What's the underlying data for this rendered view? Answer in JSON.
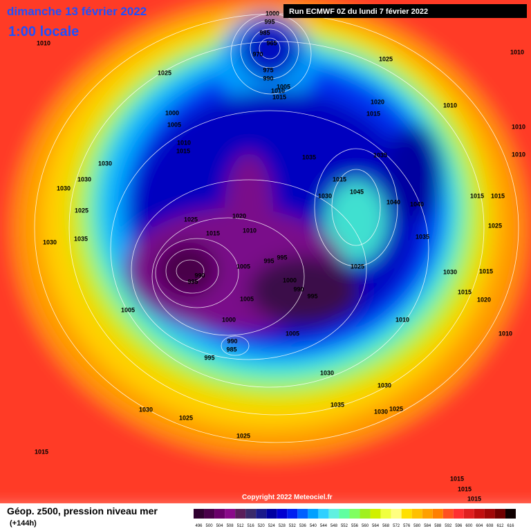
{
  "header": {
    "date": "dimanche 13 février 2022",
    "time": "1:00 locale",
    "run": "Run ECMWF 0Z du lundi 7 février 2022"
  },
  "footer": {
    "title": "Géop. z500, pression niveau mer",
    "lead": "(+144h)",
    "copyright": "Copyright 2022 Meteociel.fr"
  },
  "legend": {
    "ticks": [
      496,
      500,
      504,
      508,
      512,
      516,
      520,
      524,
      528,
      532,
      536,
      540,
      544,
      548,
      552,
      556,
      560,
      564,
      568,
      572,
      576,
      580,
      584,
      588,
      592,
      596,
      600,
      604,
      608,
      612,
      616
    ],
    "colors": [
      "#300030",
      "#4a004a",
      "#6a006a",
      "#8a0a8a",
      "#5a1e5a",
      "#3a2a6a",
      "#1a1a8a",
      "#0000a0",
      "#0000d0",
      "#0020f0",
      "#0060ff",
      "#00a0ff",
      "#30d0ff",
      "#60f0e0",
      "#60ffa0",
      "#80ff60",
      "#a0f020",
      "#d0f000",
      "#f0ff40",
      "#ffff80",
      "#ffe000",
      "#ffc000",
      "#ffa000",
      "#ff8000",
      "#ff5020",
      "#ff3030",
      "#e02020",
      "#c01010",
      "#a00808",
      "#700000",
      "#100000"
    ]
  },
  "isobar_labels": [
    "1000",
    "995",
    "985",
    "965",
    "970",
    "975",
    "990",
    "1005",
    "1010",
    "1015",
    "1010",
    "1025",
    "1025",
    "1010",
    "1020",
    "1015",
    "1010",
    "1010",
    "1000",
    "1005",
    "1010",
    "1015",
    "1030",
    "1030",
    "1035",
    "1035",
    "1010",
    "1030",
    "1015",
    "1045",
    "1030",
    "1015",
    "1015",
    "1040",
    "1040",
    "1025",
    "1025",
    "1020",
    "1010",
    "1015",
    "1025",
    "1035",
    "1035",
    "1030",
    "995",
    "995",
    "1005",
    "990",
    "995",
    "1025",
    "1030",
    "1015",
    "1000",
    "990",
    "1005",
    "995",
    "1015",
    "1020",
    "1005",
    "1010",
    "1000",
    "1010",
    "1005",
    "990",
    "985",
    "995",
    "1030",
    "1030",
    "1035",
    "1030",
    "1025",
    "1030",
    "1025",
    "1025",
    "1015",
    "1015",
    "1015",
    "1015"
  ]
}
